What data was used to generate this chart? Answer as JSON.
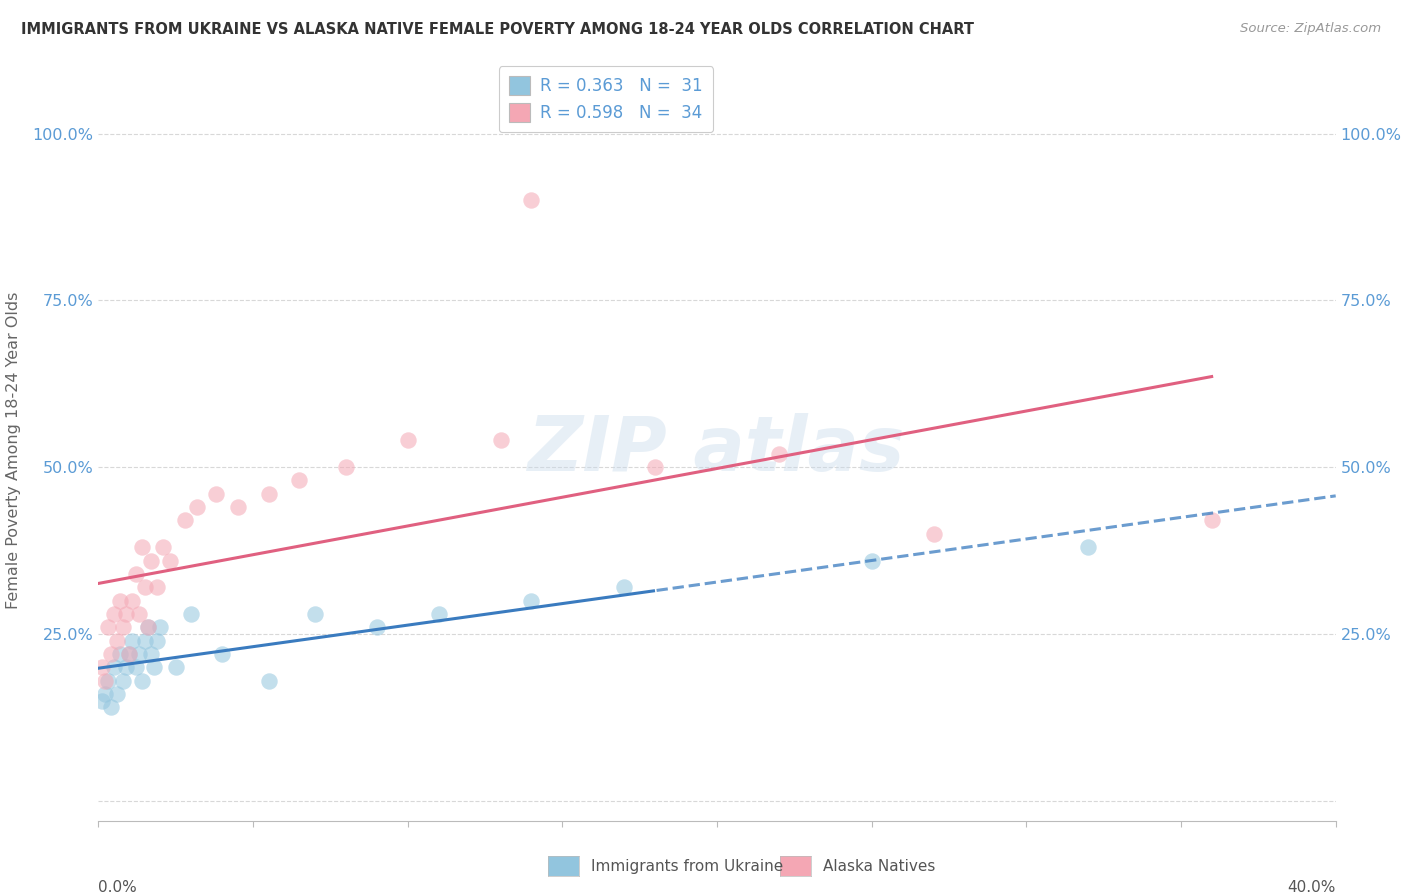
{
  "title": "IMMIGRANTS FROM UKRAINE VS ALASKA NATIVE FEMALE POVERTY AMONG 18-24 YEAR OLDS CORRELATION CHART",
  "source": "Source: ZipAtlas.com",
  "ylabel": "Female Poverty Among 18-24 Year Olds",
  "xlim": [
    0.0,
    40.0
  ],
  "ylim": [
    -3.0,
    108.0
  ],
  "ytick_vals": [
    0,
    25,
    50,
    75,
    100
  ],
  "ytick_labels": [
    "",
    "25.0%",
    "50.0%",
    "75.0%",
    "100.0%"
  ],
  "legend_label1": "Immigrants from Ukraine",
  "legend_label2": "Alaska Natives",
  "color_blue": "#92c5de",
  "color_pink": "#f4a7b4",
  "color_blue_line": "#3a7bbf",
  "color_pink_line": "#e06080",
  "ukraine_x": [
    0.1,
    0.2,
    0.3,
    0.4,
    0.5,
    0.6,
    0.7,
    0.8,
    0.9,
    1.0,
    1.1,
    1.2,
    1.3,
    1.4,
    1.5,
    1.6,
    1.7,
    1.8,
    1.9,
    2.0,
    2.5,
    3.0,
    4.0,
    5.5,
    7.0,
    9.0,
    11.0,
    14.0,
    17.0,
    25.0,
    32.0
  ],
  "ukraine_y": [
    15,
    16,
    18,
    14,
    20,
    16,
    22,
    18,
    20,
    22,
    24,
    20,
    22,
    18,
    24,
    26,
    22,
    20,
    24,
    26,
    20,
    28,
    22,
    18,
    28,
    26,
    28,
    30,
    32,
    36,
    38
  ],
  "alaska_x": [
    0.1,
    0.2,
    0.3,
    0.4,
    0.5,
    0.6,
    0.7,
    0.8,
    0.9,
    1.0,
    1.1,
    1.2,
    1.3,
    1.4,
    1.5,
    1.6,
    1.7,
    1.9,
    2.1,
    2.3,
    2.8,
    3.2,
    3.8,
    4.5,
    5.5,
    6.5,
    8.0,
    10.0,
    13.0,
    14.0,
    18.0,
    22.0,
    27.0,
    36.0
  ],
  "alaska_y": [
    20,
    18,
    26,
    22,
    28,
    24,
    30,
    26,
    28,
    22,
    30,
    34,
    28,
    38,
    32,
    26,
    36,
    32,
    38,
    36,
    42,
    44,
    46,
    44,
    46,
    48,
    50,
    54,
    54,
    90,
    50,
    52,
    40,
    42
  ],
  "ukraine_line_x_solid_end": 18.0,
  "alaska_line_x_solid_end": 36.0,
  "watermark_text": "ZIP atlas",
  "watermark_fontsize": 55,
  "bg_color": "#ffffff",
  "grid_color": "#d8d8d8",
  "tick_label_color": "#5b9bd5",
  "title_color": "#333333",
  "ylabel_color": "#666666",
  "source_color": "#999999"
}
